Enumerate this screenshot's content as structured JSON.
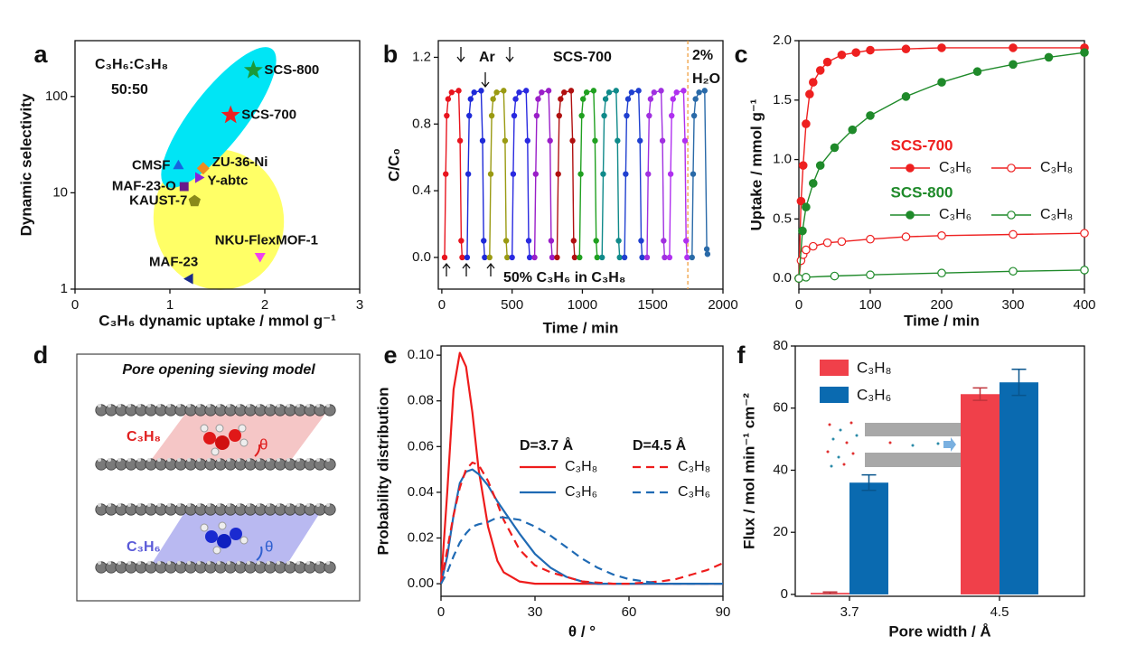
{
  "chart_data": [
    {
      "panel": "a",
      "type": "scatter",
      "annotations": [
        "C₃H₆:C₃H₈",
        "50:50"
      ],
      "xlabel": "C₃H₆ dynamic uptake / mmol g⁻¹",
      "ylabel": "Dynamic selectivity",
      "xlim": [
        0,
        3
      ],
      "ylim": [
        1,
        380
      ],
      "ylog": true,
      "xticks": [
        0,
        1,
        2,
        3
      ],
      "yticks": [
        1,
        10,
        100
      ],
      "series": [
        {
          "name": "SCS-800",
          "color": "#1a9a3a",
          "marker": "star",
          "x": [
            1.88
          ],
          "values": [
            187
          ]
        },
        {
          "name": "SCS-700",
          "color": "#ee2020",
          "marker": "star",
          "x": [
            1.64
          ],
          "values": [
            64
          ]
        },
        {
          "name": "CMSF",
          "color": "#1565e0",
          "marker": "triangle-up",
          "x": [
            1.09
          ],
          "values": [
            19
          ]
        },
        {
          "name": "ZU-36-Ni",
          "color": "#f08a1e",
          "marker": "diamond",
          "x": [
            1.35
          ],
          "values": [
            18
          ]
        },
        {
          "name": "Y-abtc",
          "color": "#8a22d8",
          "marker": "triangle-right",
          "x": [
            1.3
          ],
          "values": [
            14.4
          ]
        },
        {
          "name": "MAF-23-O",
          "color": "#6a1a8a",
          "marker": "square",
          "x": [
            1.15
          ],
          "values": [
            11.6
          ]
        },
        {
          "name": "KAUST-7",
          "color": "#8a8a1a",
          "marker": "pentagon",
          "x": [
            1.26
          ],
          "values": [
            8.2
          ]
        },
        {
          "name": "NKU-FlexMOF-1",
          "color": "#f040f0",
          "marker": "triangle-down",
          "x": [
            1.95
          ],
          "values": [
            2.2
          ]
        },
        {
          "name": "MAF-23",
          "color": "#1a2a8a",
          "marker": "triangle-left",
          "x": [
            1.21
          ],
          "values": [
            1.28
          ]
        }
      ]
    },
    {
      "panel": "b",
      "type": "line",
      "annotations": [
        "Ar",
        "SCS-700",
        "2%",
        "H₂O",
        "50% C₃H₆ in C₃H₈"
      ],
      "vline": 1750,
      "xlabel": "Time / min",
      "ylabel": "C/C₀",
      "xlim": [
        -25,
        2000
      ],
      "ylim": [
        -0.19,
        1.3
      ],
      "xticks": [
        0,
        500,
        1000,
        1500,
        2000
      ],
      "yticks": [
        {
          "value": 0,
          "label": "0.0"
        },
        0.4,
        0.8,
        1.2
      ],
      "series": [
        {
          "color": "#e8141e",
          "marker": "dot",
          "x": [
            20,
            28,
            35,
            45,
            70,
            120,
            130,
            138,
            145
          ],
          "values": [
            0,
            0.5,
            0.85,
            0.95,
            0.99,
            1.0,
            0.7,
            0.1,
            0
          ]
        },
        {
          "color": "#1e2ad8",
          "marker": "dot",
          "x": [
            180,
            188,
            195,
            205,
            230,
            280,
            290,
            298,
            305
          ],
          "values": [
            0,
            0.5,
            0.85,
            0.95,
            0.99,
            1.0,
            0.7,
            0.1,
            0
          ]
        },
        {
          "color": "#9a9a12",
          "marker": "dot",
          "x": [
            340,
            348,
            355,
            365,
            390,
            440,
            450,
            458,
            465
          ],
          "values": [
            0,
            0.5,
            0.85,
            0.95,
            0.99,
            1.0,
            0.7,
            0.1,
            0
          ]
        },
        {
          "color": "#2a2ae0",
          "marker": "dot",
          "x": [
            500,
            508,
            515,
            525,
            550,
            600,
            610,
            618,
            625
          ],
          "values": [
            0,
            0.5,
            0.85,
            0.95,
            0.99,
            1.0,
            0.7,
            0.1,
            0
          ]
        },
        {
          "color": "#9a1ec8",
          "marker": "dot",
          "x": [
            660,
            668,
            675,
            685,
            710,
            760,
            770,
            778,
            785
          ],
          "values": [
            0,
            0.5,
            0.85,
            0.95,
            0.99,
            1.0,
            0.7,
            0.1,
            0
          ]
        },
        {
          "color": "#b01010",
          "marker": "dot",
          "x": [
            820,
            828,
            835,
            845,
            870,
            920,
            930,
            938,
            945
          ],
          "values": [
            0,
            0.5,
            0.85,
            0.95,
            0.99,
            1.0,
            0.7,
            0.1,
            0
          ]
        },
        {
          "color": "#20a020",
          "marker": "dot",
          "x": [
            980,
            988,
            995,
            1005,
            1030,
            1080,
            1090,
            1098,
            1105
          ],
          "values": [
            0,
            0.5,
            0.85,
            0.95,
            0.99,
            1.0,
            0.7,
            0.1,
            0
          ]
        },
        {
          "color": "#108a8a",
          "marker": "dot",
          "x": [
            1140,
            1148,
            1155,
            1165,
            1190,
            1240,
            1250,
            1258,
            1265
          ],
          "values": [
            0,
            0.5,
            0.85,
            0.95,
            0.99,
            1.0,
            0.7,
            0.1,
            0
          ]
        },
        {
          "color": "#2040d0",
          "marker": "dot",
          "x": [
            1300,
            1308,
            1315,
            1325,
            1350,
            1400,
            1410,
            1418,
            1425
          ],
          "values": [
            0,
            0.5,
            0.85,
            0.95,
            0.99,
            1.0,
            0.7,
            0.1,
            0
          ]
        },
        {
          "color": "#a030e0",
          "marker": "dot",
          "x": [
            1460,
            1468,
            1475,
            1485,
            1510,
            1560,
            1570,
            1578,
            1585
          ],
          "values": [
            0,
            0.5,
            0.85,
            0.95,
            0.99,
            1.0,
            0.7,
            0.1,
            0
          ]
        },
        {
          "color": "#b030f0",
          "marker": "dot",
          "x": [
            1620,
            1628,
            1635,
            1645,
            1670,
            1720,
            1730,
            1738,
            1745
          ],
          "values": [
            0,
            0.5,
            0.85,
            0.95,
            0.99,
            1.0,
            0.7,
            0.1,
            0
          ]
        },
        {
          "color": "#2a6aa8",
          "marker": "dot",
          "x": [
            1780,
            1788,
            1795,
            1805,
            1830,
            1870,
            1885,
            1890
          ],
          "values": [
            0,
            0.5,
            0.85,
            0.95,
            0.99,
            1.0,
            0.05,
            0.02
          ]
        }
      ]
    },
    {
      "panel": "c",
      "type": "line",
      "xlabel": "Time / min",
      "ylabel": "Uptake / mmol g⁻¹",
      "xlim": [
        0,
        400
      ],
      "ylim": [
        -0.09,
        2
      ],
      "xticks": [
        0,
        100,
        200,
        300,
        400
      ],
      "yticks": [
        {
          "value": 0,
          "label": "0.0"
        },
        0.5,
        {
          "value": 1,
          "label": "1.0"
        },
        1.5,
        {
          "value": 2,
          "label": "2.0"
        }
      ],
      "series": [
        {
          "group": "SCS-700",
          "name": "C₃H₆",
          "color": "#ee2020",
          "marker": "filled",
          "x": [
            0,
            3,
            6,
            10,
            15,
            20,
            30,
            40,
            60,
            80,
            100,
            150,
            200,
            300,
            400
          ],
          "values": [
            0,
            0.65,
            0.95,
            1.3,
            1.55,
            1.65,
            1.75,
            1.82,
            1.88,
            1.9,
            1.92,
            1.93,
            1.94,
            1.94,
            1.94
          ]
        },
        {
          "group": "SCS-700",
          "name": "C₃H₈",
          "color": "#ee2020",
          "marker": "open",
          "x": [
            0,
            3,
            6,
            10,
            20,
            40,
            60,
            100,
            150,
            200,
            300,
            400
          ],
          "values": [
            0,
            0.15,
            0.2,
            0.24,
            0.27,
            0.3,
            0.31,
            0.33,
            0.35,
            0.36,
            0.37,
            0.38
          ]
        },
        {
          "group": "SCS-800",
          "name": "C₃H₆",
          "color": "#1f8a2a",
          "marker": "filled",
          "x": [
            0,
            5,
            10,
            20,
            30,
            50,
            75,
            100,
            150,
            200,
            250,
            300,
            350,
            400
          ],
          "values": [
            0,
            0.4,
            0.6,
            0.8,
            0.95,
            1.1,
            1.25,
            1.37,
            1.53,
            1.65,
            1.74,
            1.8,
            1.86,
            1.9
          ]
        },
        {
          "group": "SCS-800",
          "name": "C₃H₈",
          "color": "#1f8a2a",
          "marker": "open",
          "x": [
            0,
            10,
            50,
            100,
            200,
            300,
            400
          ],
          "values": [
            0,
            0.01,
            0.02,
            0.03,
            0.045,
            0.06,
            0.07
          ]
        }
      ]
    },
    {
      "panel": "e",
      "type": "line",
      "xlabel": "θ / °",
      "ylabel": "Probability distribution",
      "xlim": [
        0,
        90
      ],
      "ylim": [
        -0.0055,
        0.104
      ],
      "xticks": [
        0,
        30,
        60,
        90
      ],
      "yticks": [
        {
          "value": 0,
          "label": "0.00"
        },
        0.02,
        0.04,
        0.06,
        0.08,
        {
          "value": 0.1,
          "label": "0.10"
        }
      ],
      "x": [
        0,
        2,
        4,
        6,
        8,
        10,
        12,
        15,
        18,
        20,
        25,
        30,
        35,
        40,
        45,
        50,
        55,
        60,
        65,
        70,
        75,
        80,
        85,
        90
      ],
      "series": [
        {
          "group": "D=3.7 Å",
          "name": "C₃H₈",
          "color": "#ee1c1c",
          "dash": false,
          "values": [
            0,
            0.04,
            0.085,
            0.101,
            0.095,
            0.075,
            0.05,
            0.025,
            0.01,
            0.005,
            0.001,
            0,
            0,
            0,
            0,
            0,
            0,
            0,
            0,
            0,
            0,
            0,
            0,
            0
          ]
        },
        {
          "group": "D=3.7 Å",
          "name": "C₃H₆",
          "color": "#1f6ab4",
          "dash": false,
          "values": [
            0,
            0.012,
            0.03,
            0.044,
            0.049,
            0.05,
            0.048,
            0.043,
            0.036,
            0.032,
            0.022,
            0.013,
            0.007,
            0.003,
            0.001,
            0,
            0,
            0,
            0,
            0,
            0,
            0,
            0,
            0
          ]
        },
        {
          "group": "D=4.5 Å",
          "name": "C₃H₈",
          "color": "#ee1c1c",
          "dash": true,
          "values": [
            0,
            0.015,
            0.03,
            0.042,
            0.05,
            0.053,
            0.052,
            0.045,
            0.035,
            0.028,
            0.015,
            0.008,
            0.005,
            0.003,
            0.001,
            0.0005,
            0,
            0,
            0.0005,
            0.001,
            0.002,
            0.004,
            0.006,
            0.009
          ]
        },
        {
          "group": "D=4.5 Å",
          "name": "C₃H₆",
          "color": "#1f6ab4",
          "dash": true,
          "values": [
            0,
            0.005,
            0.012,
            0.018,
            0.022,
            0.025,
            0.026,
            0.027,
            0.029,
            0.029,
            0.028,
            0.025,
            0.021,
            0.016,
            0.011,
            0.007,
            0.004,
            0.002,
            0.001,
            0,
            0,
            0,
            0,
            0
          ]
        }
      ]
    },
    {
      "panel": "f",
      "type": "bar",
      "xlabel": "Pore width / Å",
      "ylabel": "Flux / mol min⁻¹ cm⁻²",
      "categories": [
        "3.7",
        "4.5"
      ],
      "ylim": [
        -0.6,
        80
      ],
      "yticks": [
        0,
        20,
        40,
        60,
        80
      ],
      "series": [
        {
          "name": "C₃H₈",
          "color": "#f0404a",
          "values": [
            0.5,
            64.5
          ],
          "errors": [
            0.3,
            2
          ]
        },
        {
          "name": "C₃H₆",
          "color": "#0a6ab0",
          "values": [
            36,
            68.3
          ],
          "errors": [
            2.5,
            4.2
          ]
        }
      ]
    }
  ],
  "diagram": {
    "panel": "d",
    "title": "Pore opening sieving model",
    "channels": [
      {
        "molecule": "C₃H₈",
        "angle": "θ"
      },
      {
        "molecule": "C₃H₆",
        "angle": "θ"
      }
    ]
  }
}
